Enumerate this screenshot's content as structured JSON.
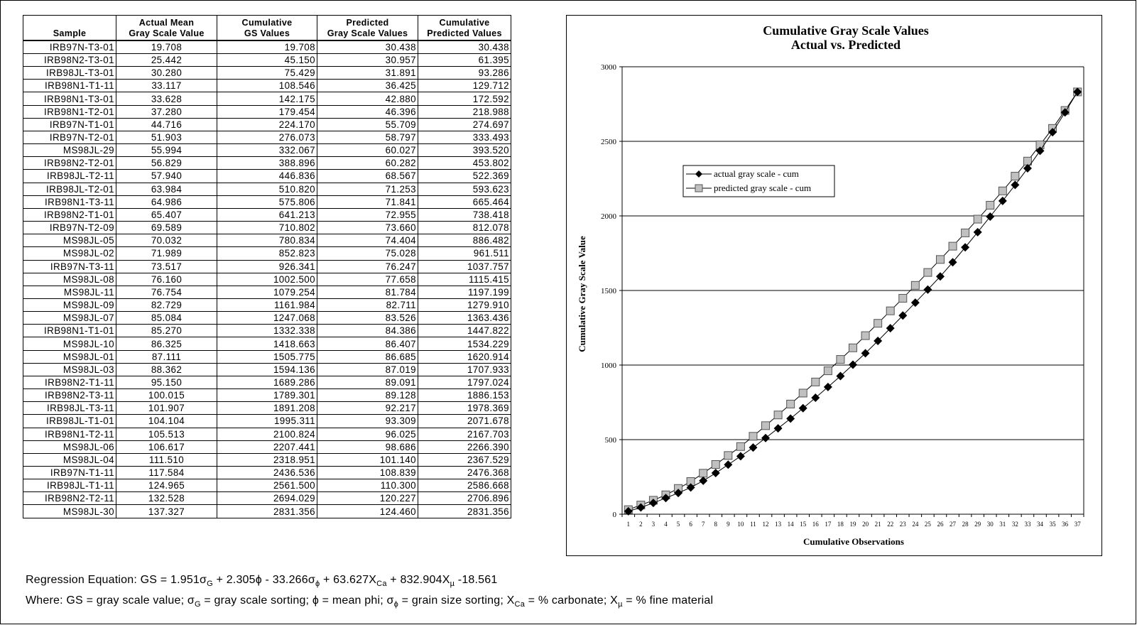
{
  "table": {
    "headers": [
      [
        "",
        "Sample"
      ],
      [
        "Actual Mean",
        "Gray Scale Value"
      ],
      [
        "Cumulative",
        "GS Values"
      ],
      [
        "Predicted",
        "Gray Scale Values"
      ],
      [
        "Cumulative",
        "Predicted Values"
      ]
    ],
    "rows": [
      [
        "IRB97N-T3-01",
        "19.708",
        "19.708",
        "30.438",
        "30.438"
      ],
      [
        "IRB98N2-T3-01",
        "25.442",
        "45.150",
        "30.957",
        "61.395"
      ],
      [
        "IRB98JL-T3-01",
        "30.280",
        "75.429",
        "31.891",
        "93.286"
      ],
      [
        "IRB98N1-T1-11",
        "33.117",
        "108.546",
        "36.425",
        "129.712"
      ],
      [
        "IRB98N1-T3-01",
        "33.628",
        "142.175",
        "42.880",
        "172.592"
      ],
      [
        "IRB98N1-T2-01",
        "37.280",
        "179.454",
        "46.396",
        "218.988"
      ],
      [
        "IRB97N-T1-01",
        "44.716",
        "224.170",
        "55.709",
        "274.697"
      ],
      [
        "IRB97N-T2-01",
        "51.903",
        "276.073",
        "58.797",
        "333.493"
      ],
      [
        "MS98JL-29",
        "55.994",
        "332.067",
        "60.027",
        "393.520"
      ],
      [
        "IRB98N2-T2-01",
        "56.829",
        "388.896",
        "60.282",
        "453.802"
      ],
      [
        "IRB98JL-T2-11",
        "57.940",
        "446.836",
        "68.567",
        "522.369"
      ],
      [
        "IRB98JL-T2-01",
        "63.984",
        "510.820",
        "71.253",
        "593.623"
      ],
      [
        "IRB98N1-T3-11",
        "64.986",
        "575.806",
        "71.841",
        "665.464"
      ],
      [
        "IRB98N2-T1-01",
        "65.407",
        "641.213",
        "72.955",
        "738.418"
      ],
      [
        "IRB97N-T2-09",
        "69.589",
        "710.802",
        "73.660",
        "812.078"
      ],
      [
        "MS98JL-05",
        "70.032",
        "780.834",
        "74.404",
        "886.482"
      ],
      [
        "MS98JL-02",
        "71.989",
        "852.823",
        "75.028",
        "961.511"
      ],
      [
        "IRB97N-T3-11",
        "73.517",
        "926.341",
        "76.247",
        "1037.757"
      ],
      [
        "MS98JL-08",
        "76.160",
        "1002.500",
        "77.658",
        "1115.415"
      ],
      [
        "MS98JL-11",
        "76.754",
        "1079.254",
        "81.784",
        "1197.199"
      ],
      [
        "MS98JL-09",
        "82.729",
        "1161.984",
        "82.711",
        "1279.910"
      ],
      [
        "MS98JL-07",
        "85.084",
        "1247.068",
        "83.526",
        "1363.436"
      ],
      [
        "IRB98N1-T1-01",
        "85.270",
        "1332.338",
        "84.386",
        "1447.822"
      ],
      [
        "MS98JL-10",
        "86.325",
        "1418.663",
        "86.407",
        "1534.229"
      ],
      [
        "MS98JL-01",
        "87.111",
        "1505.775",
        "86.685",
        "1620.914"
      ],
      [
        "MS98JL-03",
        "88.362",
        "1594.136",
        "87.019",
        "1707.933"
      ],
      [
        "IRB98N2-T1-11",
        "95.150",
        "1689.286",
        "89.091",
        "1797.024"
      ],
      [
        "IRB98N2-T3-11",
        "100.015",
        "1789.301",
        "89.128",
        "1886.153"
      ],
      [
        "IRB98JL-T3-11",
        "101.907",
        "1891.208",
        "92.217",
        "1978.369"
      ],
      [
        "IRB98JL-T1-01",
        "104.104",
        "1995.311",
        "93.309",
        "2071.678"
      ],
      [
        "IRB98N1-T2-11",
        "105.513",
        "2100.824",
        "96.025",
        "2167.703"
      ],
      [
        "MS98JL-06",
        "106.617",
        "2207.441",
        "98.686",
        "2266.390"
      ],
      [
        "MS98JL-04",
        "111.510",
        "2318.951",
        "101.140",
        "2367.529"
      ],
      [
        "IRB97N-T1-11",
        "117.584",
        "2436.536",
        "108.839",
        "2476.368"
      ],
      [
        "IRB98JL-T1-11",
        "124.965",
        "2561.500",
        "110.300",
        "2586.668"
      ],
      [
        "IRB98N2-T2-11",
        "132.528",
        "2694.029",
        "120.227",
        "2706.896"
      ],
      [
        "MS98JL-30",
        "137.327",
        "2831.356",
        "124.460",
        "2831.356"
      ]
    ]
  },
  "chart_data": {
    "type": "line",
    "title": "Cumulative Gray Scale Values",
    "subtitle": "Actual vs. Predicted",
    "xlabel": "Cumulative Observations",
    "ylabel": "Cumulative Gray Scale Value",
    "x": [
      1,
      2,
      3,
      4,
      5,
      6,
      7,
      8,
      9,
      10,
      11,
      12,
      13,
      14,
      15,
      16,
      17,
      18,
      19,
      20,
      21,
      22,
      23,
      24,
      25,
      26,
      27,
      28,
      29,
      30,
      31,
      32,
      33,
      34,
      35,
      36,
      37
    ],
    "ylim": [
      0,
      3000
    ],
    "yticks": [
      0,
      500,
      1000,
      1500,
      2000,
      2500,
      3000
    ],
    "grid": "horizontal",
    "legend": "upper-left",
    "series": [
      {
        "name": "actual gray scale - cum",
        "marker": "diamond",
        "color": "#000000",
        "values": [
          19.708,
          45.15,
          75.429,
          108.546,
          142.175,
          179.454,
          224.17,
          276.073,
          332.067,
          388.896,
          446.836,
          510.82,
          575.806,
          641.213,
          710.802,
          780.834,
          852.823,
          926.341,
          1002.5,
          1079.254,
          1161.984,
          1247.068,
          1332.338,
          1418.663,
          1505.775,
          1594.136,
          1689.286,
          1789.301,
          1891.208,
          1995.311,
          2100.824,
          2207.441,
          2318.951,
          2436.536,
          2561.5,
          2694.029,
          2831.356
        ]
      },
      {
        "name": "predicted gray scale - cum",
        "marker": "square",
        "color": "#c0c0c0",
        "values": [
          30.438,
          61.395,
          93.286,
          129.712,
          172.592,
          218.988,
          274.697,
          333.493,
          393.52,
          453.802,
          522.369,
          593.623,
          665.464,
          738.418,
          812.078,
          886.482,
          961.511,
          1037.757,
          1115.415,
          1197.199,
          1279.91,
          1363.436,
          1447.822,
          1534.229,
          1620.914,
          1707.933,
          1797.024,
          1886.153,
          1978.369,
          2071.678,
          2167.703,
          2266.39,
          2367.529,
          2476.368,
          2586.668,
          2706.896,
          2831.356
        ]
      }
    ]
  },
  "footer": {
    "regression_prefix": "Regression Equation:  GS = 1.951σ",
    "regression_sub_g": "G",
    "regression_mid1": " + 2.305ϕ - 33.266σ",
    "regression_sub_phi": "ϕ",
    "regression_mid2": " + 63.627X",
    "regression_sub_ca": "Ca",
    "regression_mid3": " + 832.904X",
    "regression_sub_mu": "µ",
    "regression_end": " -18.561",
    "where_1": "Where: GS = gray scale value; σ",
    "where_sub_g": "G",
    "where_2": " = gray scale sorting; ϕ = mean phi; σ",
    "where_sub_phi": "ϕ",
    "where_3": " = grain size sorting; X",
    "where_sub_ca": "Ca",
    "where_4": " = % carbonate; X",
    "where_sub_mu": "µ",
    "where_5": " = % fine material"
  }
}
